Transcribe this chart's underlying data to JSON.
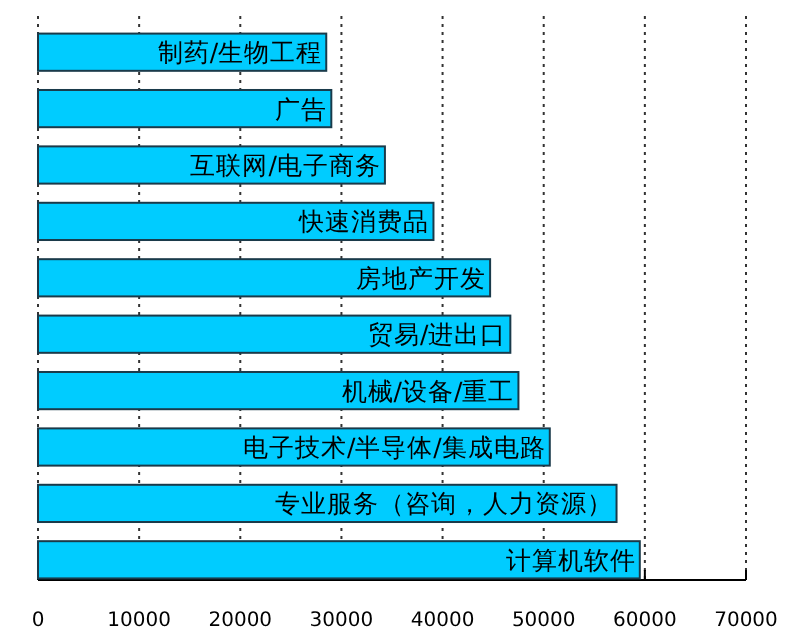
{
  "chart_data": {
    "type": "bar",
    "orientation": "horizontal",
    "categories": [
      "制药/生物工程",
      "广告",
      "互联网/电子商务",
      "快速消费品",
      "房地产开发",
      "贸易/进出口",
      "机械/设备/重工",
      "电子技术/半导体/集成电路",
      "专业服务（咨询，人力资源）",
      "计算机软件"
    ],
    "values": [
      28500,
      29000,
      34300,
      39100,
      44700,
      46700,
      47500,
      50600,
      57200,
      59500
    ],
    "color": "#00ccff",
    "xlim": [
      0,
      70000
    ],
    "xticks": [
      0,
      10000,
      20000,
      30000,
      40000,
      50000,
      60000,
      70000
    ],
    "grid": "x"
  }
}
